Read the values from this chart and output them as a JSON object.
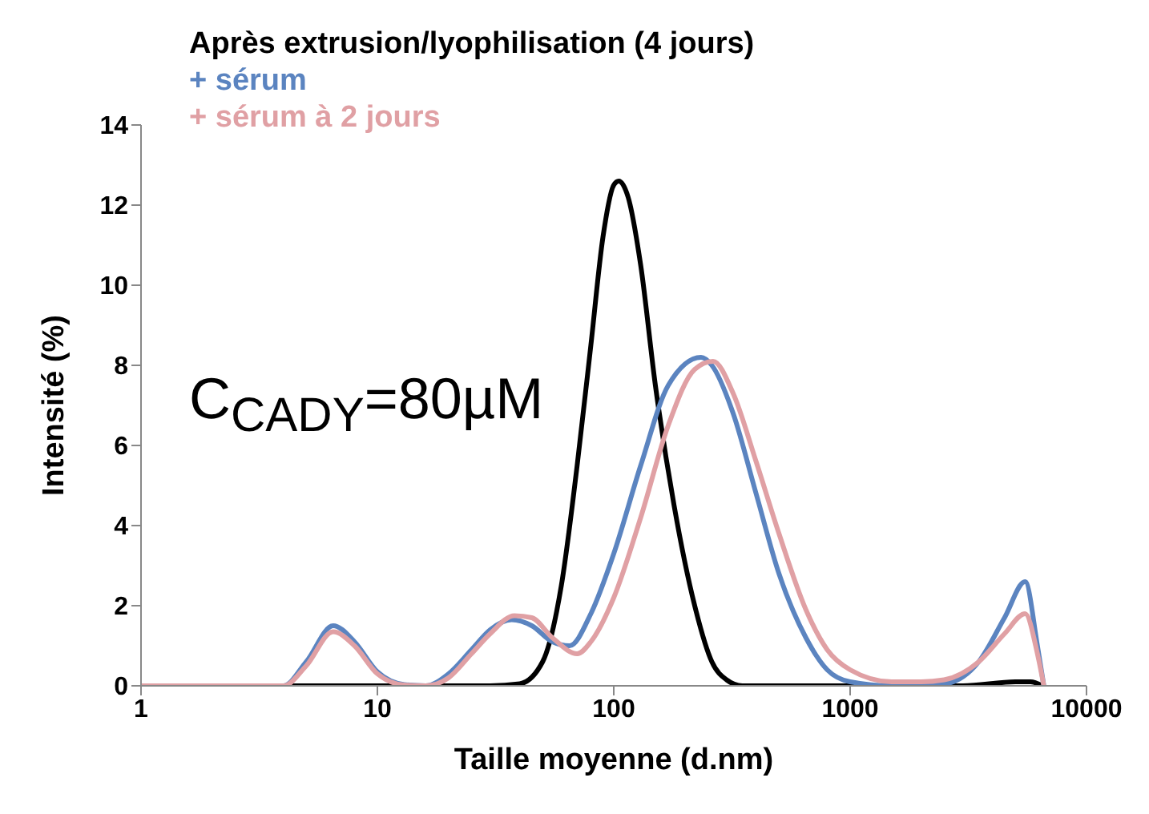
{
  "chart_data": {
    "type": "line",
    "xlabel": "Taille moyenne (d.nm)",
    "ylabel": "Intensité (%)",
    "log": "x",
    "xlim": [
      1,
      10000
    ],
    "xticks": [
      1,
      10,
      100,
      1000,
      10000
    ],
    "ylim": [
      0,
      14
    ],
    "yticks": [
      0,
      2,
      4,
      6,
      8,
      10,
      12,
      14
    ],
    "grid": false,
    "legend": "top left",
    "marker": "none",
    "line_style": "solid",
    "annotations": [
      "C$_{CADY}$=80µM"
    ],
    "series": [
      {
        "name": "Après extrusion/lyophilisation  (4 jours)",
        "color": "#000000",
        "x": [
          1,
          30,
          40,
          50,
          60,
          70,
          80,
          90,
          100,
          105,
          115,
          130,
          150,
          180,
          220,
          260,
          300,
          350,
          3000,
          5000,
          5800,
          6500
        ],
        "values": [
          0,
          0,
          0.05,
          0.6,
          2.5,
          5.5,
          8.5,
          11.2,
          12.5,
          12.6,
          12.2,
          10.5,
          7.5,
          4.5,
          2,
          0.6,
          0.15,
          0,
          0,
          0.1,
          0.1,
          0
        ]
      },
      {
        "name": "+ sérum",
        "color": "#5b84c0",
        "x": [
          1,
          4,
          5,
          6.5,
          8,
          10,
          13,
          16,
          20,
          25,
          30,
          37,
          45,
          55,
          65,
          80,
          100,
          130,
          170,
          234,
          260,
          320,
          400,
          500,
          650,
          800,
          1000,
          1500,
          2500,
          3500,
          4500,
          5500,
          6200,
          6600
        ],
        "values": [
          0,
          0,
          0.6,
          1.5,
          1.1,
          0.35,
          0.03,
          0,
          0.3,
          0.9,
          1.4,
          1.65,
          1.5,
          1.1,
          1.0,
          1.8,
          3.3,
          5.5,
          7.5,
          8.2,
          8.0,
          6.8,
          4.8,
          2.8,
          1.2,
          0.4,
          0.1,
          0,
          0.05,
          0.6,
          1.7,
          2.6,
          1.0,
          0
        ]
      },
      {
        "name": "+ sérum  à 2 jours",
        "color": "#e0a0a4",
        "x": [
          1,
          4,
          5,
          6.5,
          8,
          10,
          13,
          16,
          20,
          25,
          30,
          38,
          45,
          55,
          70,
          80,
          100,
          130,
          170,
          220,
          263,
          320,
          400,
          500,
          650,
          800,
          1000,
          1500,
          2000,
          2500,
          3500,
          4500,
          5500,
          6200,
          6600
        ],
        "values": [
          0,
          0,
          0.5,
          1.35,
          1.0,
          0.3,
          0.02,
          0,
          0.2,
          0.8,
          1.3,
          1.75,
          1.7,
          1.2,
          0.8,
          1.1,
          2.2,
          4.2,
          6.5,
          7.9,
          8.1,
          7.3,
          5.6,
          3.8,
          1.9,
          0.9,
          0.4,
          0.1,
          0.1,
          0.15,
          0.6,
          1.3,
          1.8,
          0.8,
          0
        ]
      }
    ]
  }
}
